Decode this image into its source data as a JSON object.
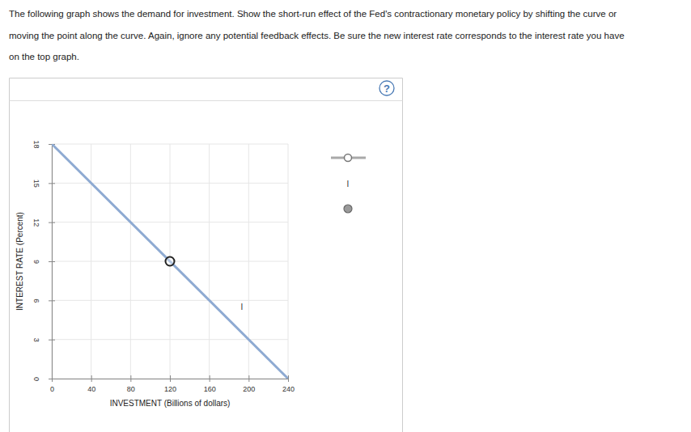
{
  "instructions": [
    "The following graph shows the demand for investment. Show the short-run effect of the Fed's contractionary monetary policy by shifting the curve or",
    "moving the point along the curve. Again, ignore any potential feedback effects. Be sure the new interest rate corresponds to the interest rate you have",
    "on the top graph."
  ],
  "help": "?",
  "tool_label": "I",
  "chart_data": {
    "type": "line",
    "x_label": "INVESTMENT (Billions of dollars)",
    "y_label": "INTEREST RATE (Percent)",
    "xlim": [
      0,
      240
    ],
    "xticks": [
      0,
      40,
      80,
      120,
      160,
      200,
      240
    ],
    "ylim": [
      0,
      18
    ],
    "yticks": [
      0,
      3,
      6,
      9,
      12,
      15,
      18
    ],
    "grid": true,
    "series": [
      {
        "name": "I",
        "type": "line",
        "color": "#8eaad2",
        "x": [
          0,
          240
        ],
        "values": [
          18,
          0
        ]
      },
      {
        "type": "scatter",
        "marker": "circle",
        "color": "#222222",
        "x": [
          120
        ],
        "values": [
          9
        ]
      }
    ],
    "annotations": [
      {
        "text": "I",
        "x": 193,
        "y": 5.5
      }
    ]
  }
}
